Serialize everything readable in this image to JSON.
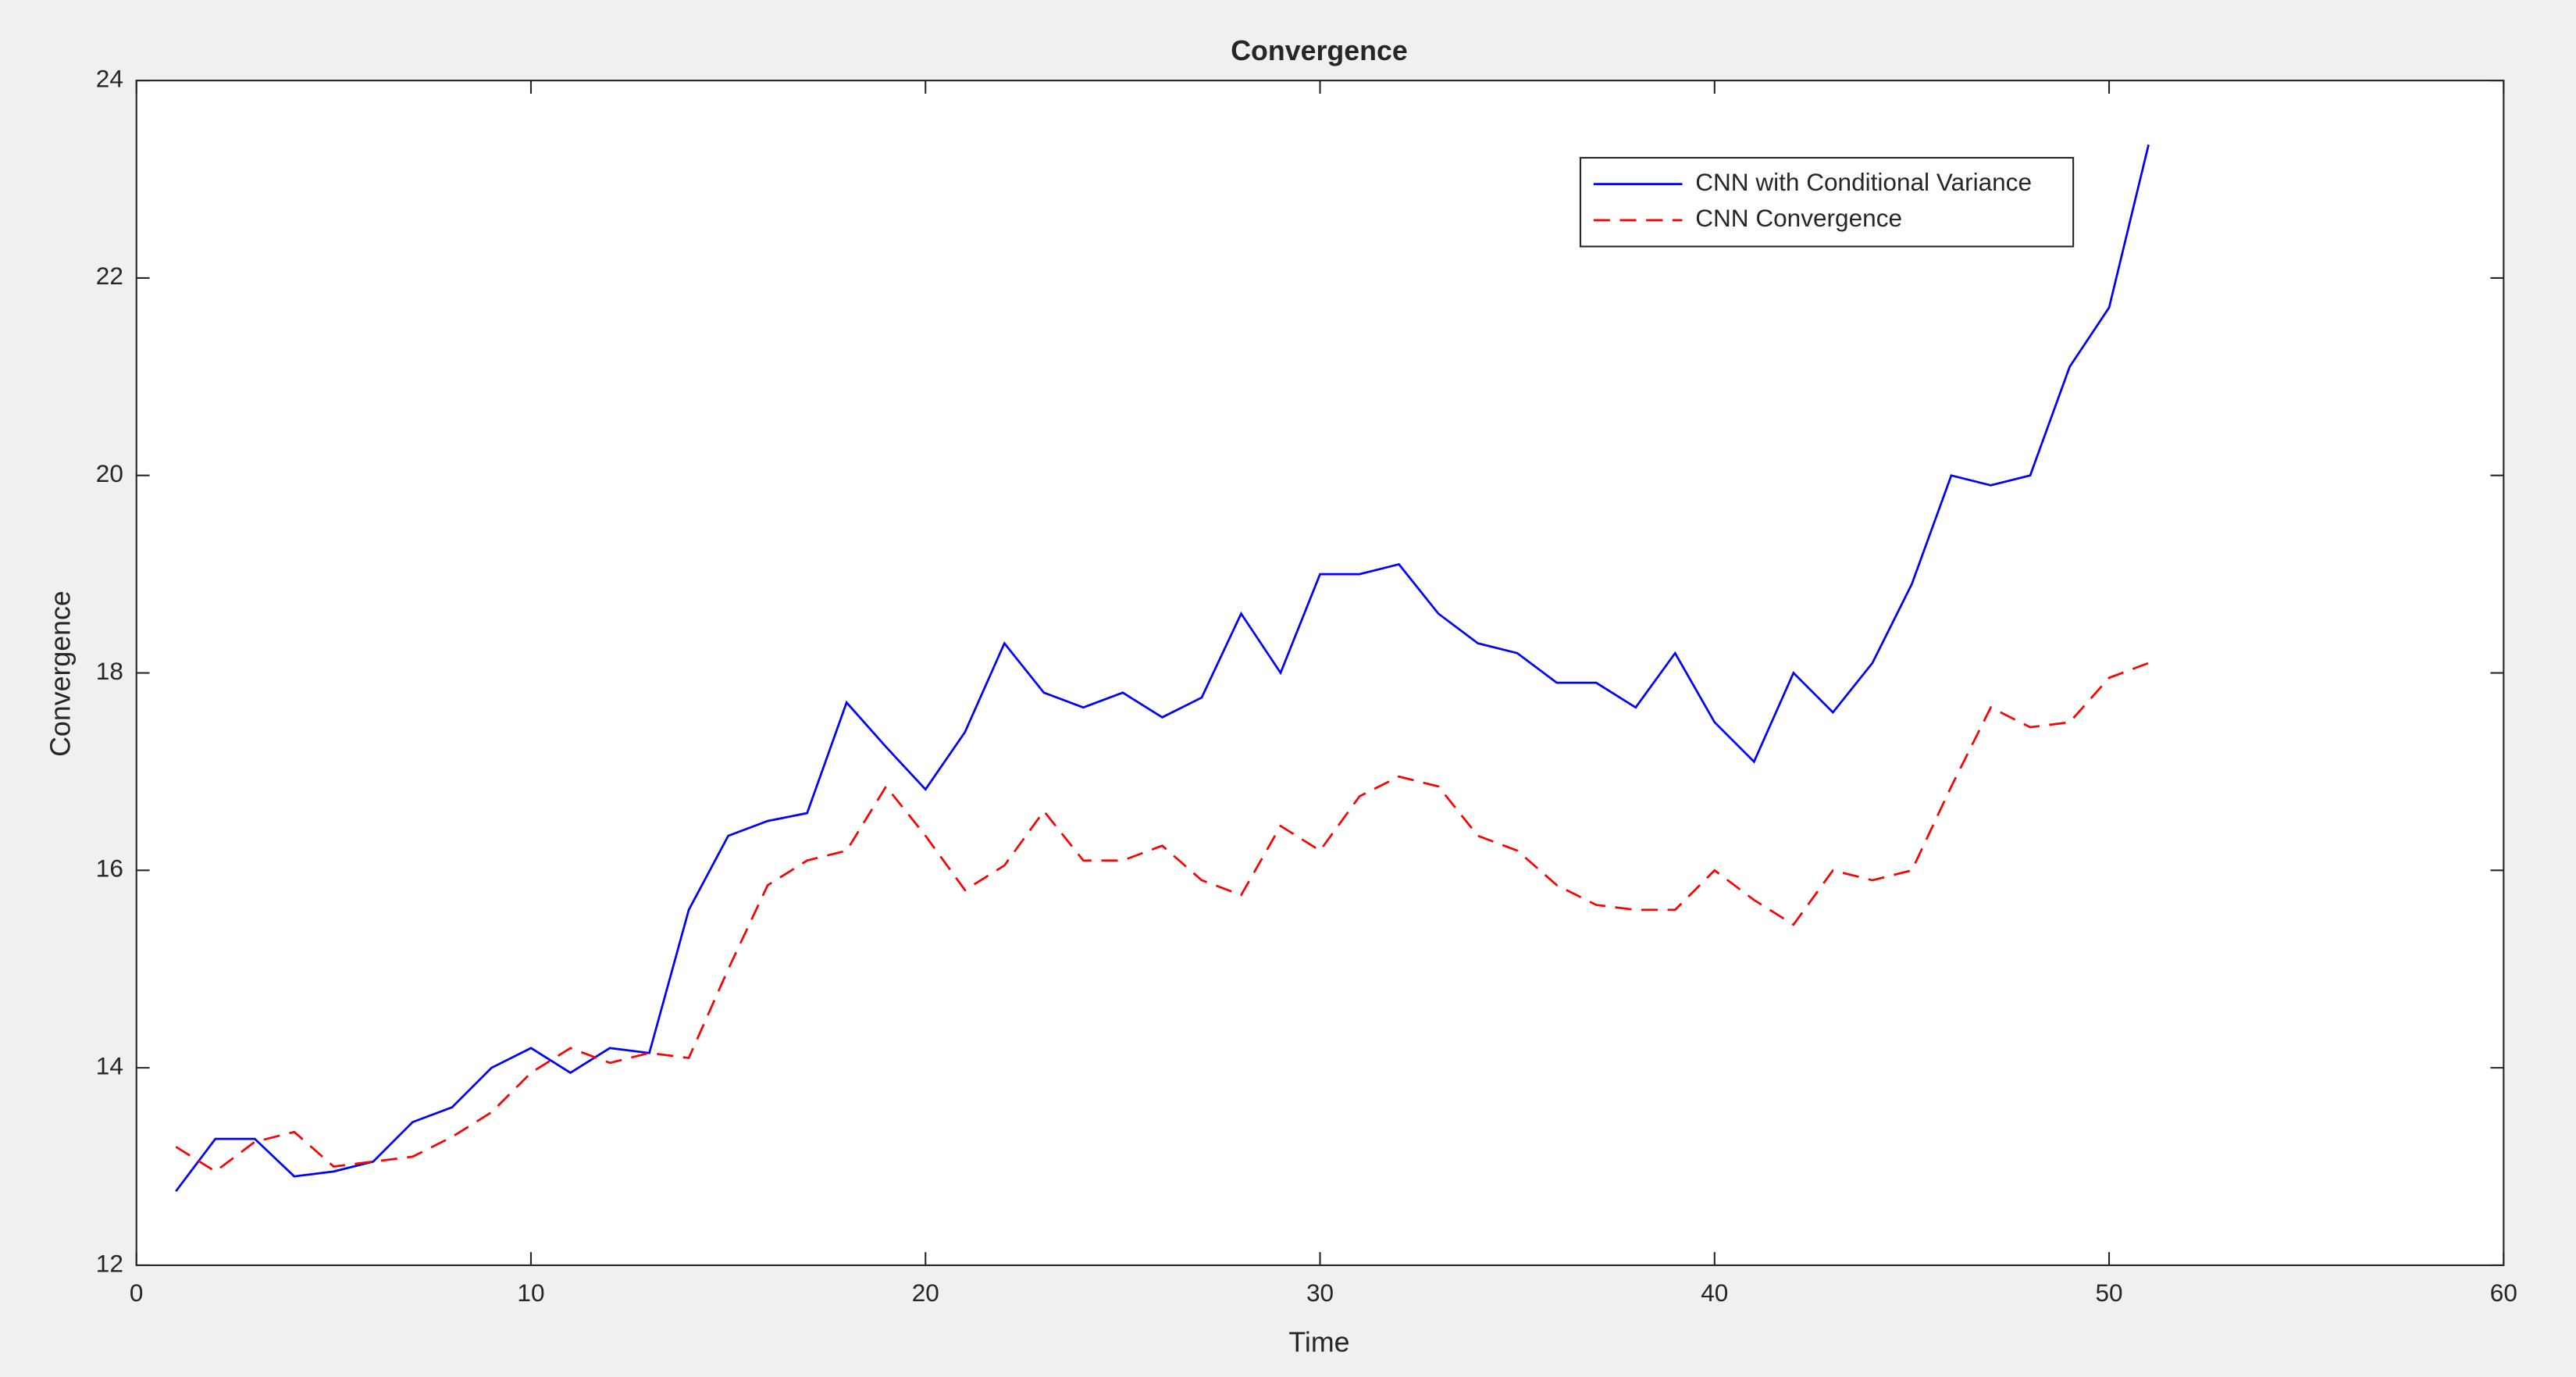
{
  "chart_data": {
    "type": "line",
    "title": "Convergence",
    "xlabel": "Time",
    "ylabel": "Convergence",
    "x": [
      1,
      2,
      3,
      4,
      5,
      6,
      7,
      8,
      9,
      10,
      11,
      12,
      13,
      14,
      15,
      16,
      17,
      18,
      19,
      20,
      21,
      22,
      23,
      24,
      25,
      26,
      27,
      28,
      29,
      30,
      31,
      32,
      33,
      34,
      35,
      36,
      37,
      38,
      39,
      40,
      41,
      42,
      43,
      44,
      45,
      46,
      47,
      48,
      49,
      50,
      51
    ],
    "series": [
      {
        "name": "CNN with Conditional Variance",
        "color": "#0000ff",
        "dash": false,
        "values": [
          12.75,
          13.28,
          13.28,
          12.9,
          12.95,
          13.05,
          13.45,
          13.6,
          14.0,
          14.2,
          13.95,
          14.2,
          14.15,
          15.6,
          16.35,
          16.5,
          16.58,
          17.7,
          17.25,
          16.82,
          17.4,
          18.3,
          17.8,
          17.65,
          17.8,
          17.55,
          17.75,
          18.6,
          18.0,
          19.0,
          19.0,
          19.1,
          18.6,
          18.3,
          18.2,
          17.9,
          17.9,
          17.65,
          18.2,
          17.5,
          17.1,
          18.0,
          17.6,
          18.1,
          18.9,
          20.0,
          19.9,
          20.0,
          21.1,
          21.7,
          23.35
        ]
      },
      {
        "name": "CNN Convergence",
        "color": "#ff0000",
        "dash": true,
        "values": [
          13.2,
          12.95,
          13.25,
          13.35,
          13.0,
          13.05,
          13.1,
          13.3,
          13.55,
          13.95,
          14.2,
          14.05,
          14.15,
          14.1,
          15.0,
          15.85,
          16.1,
          16.2,
          16.85,
          16.35,
          15.8,
          16.05,
          16.6,
          16.1,
          16.1,
          16.25,
          15.9,
          15.75,
          16.45,
          16.2,
          16.75,
          16.95,
          16.85,
          16.35,
          16.2,
          15.85,
          15.65,
          15.6,
          15.6,
          16.0,
          15.7,
          15.45,
          16.0,
          15.9,
          16.0,
          16.85,
          17.65,
          17.45,
          17.5,
          17.95,
          18.1
        ]
      }
    ],
    "xlim": [
      0,
      60
    ],
    "xticks": [
      0,
      10,
      20,
      30,
      40,
      50,
      60
    ],
    "ylim": [
      12,
      24
    ],
    "yticks": [
      12,
      14,
      16,
      18,
      20,
      22,
      24
    ],
    "grid": false,
    "legend": "northeast"
  }
}
